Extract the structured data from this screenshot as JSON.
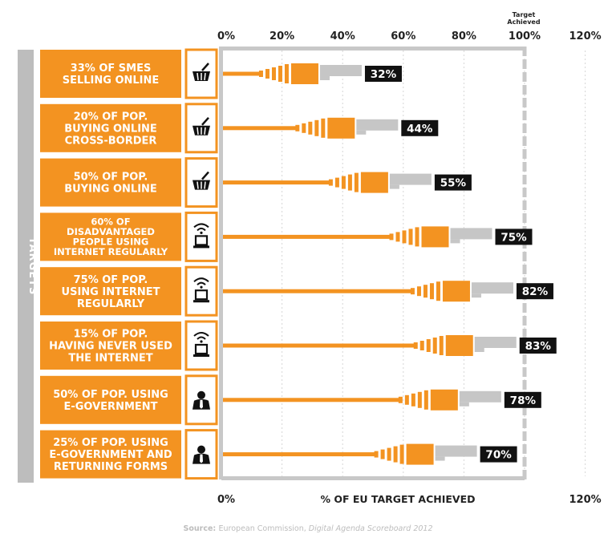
{
  "chart_data": {
    "type": "bar",
    "side_label": "TARGETS",
    "xaxis": {
      "ticks_top": [
        "0%",
        "20%",
        "40%",
        "60%",
        "80%",
        "100%",
        "120%"
      ],
      "tick_values": [
        0,
        20,
        40,
        60,
        80,
        100,
        120
      ],
      "target_marker_label": [
        "Target",
        "Achieved"
      ],
      "bottom_left": "0%",
      "bottom_right": "120%",
      "xlabel": "% OF EU TARGET ACHIEVED",
      "xlim": [
        0,
        120
      ]
    },
    "categories": [
      {
        "label": [
          "33% OF SMES",
          "SELLING ONLINE"
        ],
        "icon": "shopping-basket-icon",
        "value": 32,
        "value_label": "32%"
      },
      {
        "label": [
          "20% OF POP.",
          "BUYING ONLINE",
          "CROSS-BORDER"
        ],
        "icon": "shopping-basket-icon",
        "value": 44,
        "value_label": "44%"
      },
      {
        "label": [
          "50% OF POP.",
          "BUYING ONLINE"
        ],
        "icon": "shopping-basket-icon",
        "value": 55,
        "value_label": "55%"
      },
      {
        "label": [
          "60% OF",
          "DISADVANTAGED",
          "PEOPLE USING",
          "INTERNET REGULARLY"
        ],
        "icon": "wifi-computer-icon",
        "value": 75,
        "value_label": "75%"
      },
      {
        "label": [
          "75% OF POP.",
          "USING INTERNET",
          "REGULARLY"
        ],
        "icon": "wifi-computer-icon",
        "value": 82,
        "value_label": "82%"
      },
      {
        "label": [
          "15% OF POP.",
          "HAVING NEVER USED",
          "THE INTERNET"
        ],
        "icon": "wifi-computer-icon",
        "value": 83,
        "value_label": "83%"
      },
      {
        "label": [
          "50% OF POP. USING",
          "E-GOVERNMENT"
        ],
        "icon": "person-icon",
        "value": 78,
        "value_label": "78%"
      },
      {
        "label": [
          "25% OF POP. USING",
          "E-GOVERNMENT AND",
          "RETURNING FORMS"
        ],
        "icon": "person-icon",
        "value": 70,
        "value_label": "70%"
      }
    ],
    "source_prefix": "Source:",
    "source_text": "European Commission,",
    "source_italic": "Digital Agenda Scoreboard 2012",
    "colors": {
      "orange": "#f39321",
      "gray_bar": "#c6c6c6",
      "frame": "#c8c8c8",
      "label_black": "#111111",
      "side_band": "#bdbdbd",
      "source_gray": "#bdbdbd"
    }
  }
}
